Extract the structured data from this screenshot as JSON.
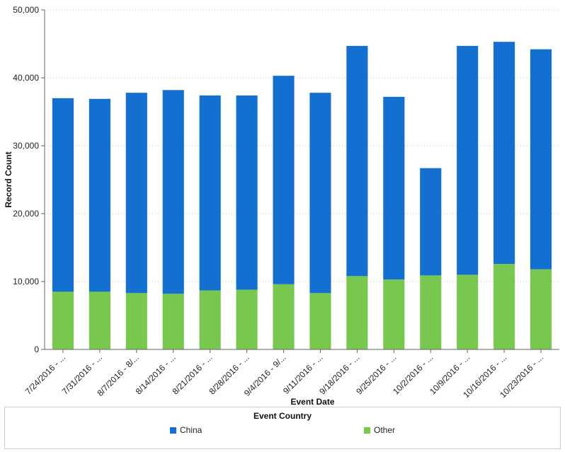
{
  "chart_data": {
    "type": "bar",
    "stacked": true,
    "categories": [
      "7/24/2016 - ...",
      "7/31/2016 - ...",
      "8/7/2016 - 8/...",
      "8/14/2016 - ...",
      "8/21/2016 - ...",
      "8/28/2016 - ...",
      "9/4/2016 - 9/...",
      "9/11/2016 - ...",
      "9/18/2016 - ...",
      "9/25/2016 - ...",
      "10/2/2016 - ...",
      "10/9/2016 - ...",
      "10/16/2016 - ...",
      "10/23/2016 - ..."
    ],
    "series": [
      {
        "name": "Other",
        "color": "#78c850",
        "values": [
          8500,
          8500,
          8300,
          8200,
          8700,
          8800,
          9600,
          8300,
          10800,
          10300,
          10900,
          11000,
          12600,
          11800
        ]
      },
      {
        "name": "China",
        "color": "#1470d0",
        "values": [
          28500,
          28400,
          29500,
          30000,
          28700,
          28600,
          30700,
          29500,
          33900,
          26900,
          15800,
          33700,
          32700,
          32400
        ]
      }
    ],
    "xlabel": "Event Date",
    "ylabel": "Record Count",
    "ylim": [
      0,
      50000
    ],
    "yticks": [
      0,
      10000,
      20000,
      30000,
      40000,
      50000
    ],
    "ytick_labels": [
      "0",
      "10,000",
      "20,000",
      "30,000",
      "40,000",
      "50,000"
    ],
    "grid": true,
    "legend": {
      "title": "Event Country",
      "position": "bottom",
      "entries": [
        "China",
        "Other"
      ]
    }
  }
}
